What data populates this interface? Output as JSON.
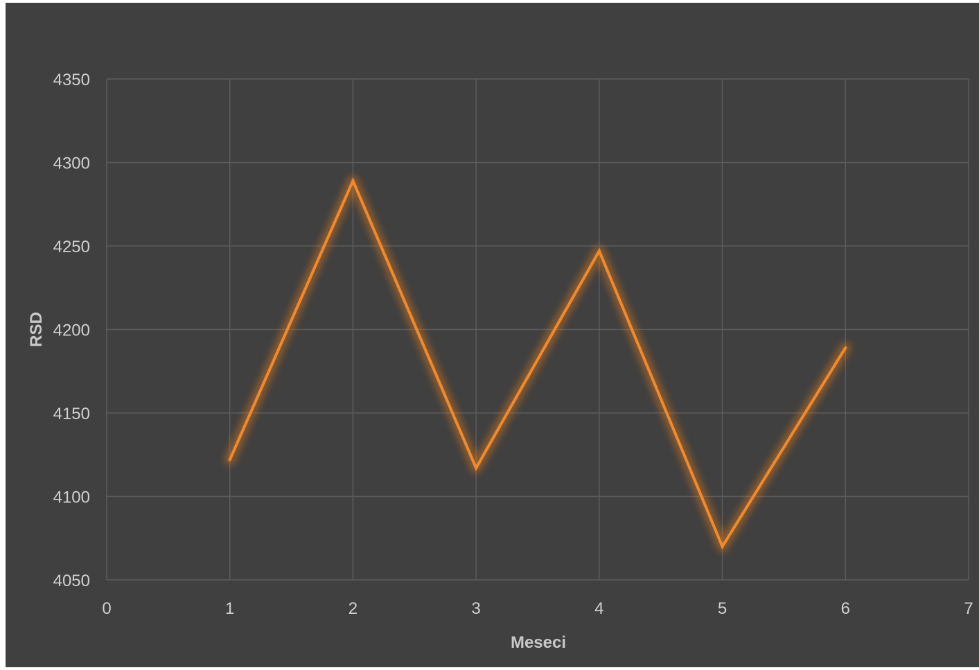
{
  "colors": {
    "background": "#404040",
    "series": "#f08a2c",
    "glow": "#e27a1c"
  },
  "chart_data": {
    "type": "line",
    "title": "",
    "xlabel": "Meseci",
    "ylabel": "RSD",
    "xlim": [
      0,
      7
    ],
    "ylim": [
      4050,
      4350
    ],
    "x_ticks": [
      0,
      1,
      2,
      3,
      4,
      5,
      6,
      7
    ],
    "y_ticks": [
      4050,
      4100,
      4150,
      4200,
      4250,
      4300,
      4350
    ],
    "grid": true,
    "legend": "none",
    "series": [
      {
        "x": [
          1,
          2,
          3,
          4,
          5,
          6
        ],
        "values": [
          4122,
          4289,
          4117,
          4247,
          4070,
          4189
        ]
      }
    ]
  }
}
